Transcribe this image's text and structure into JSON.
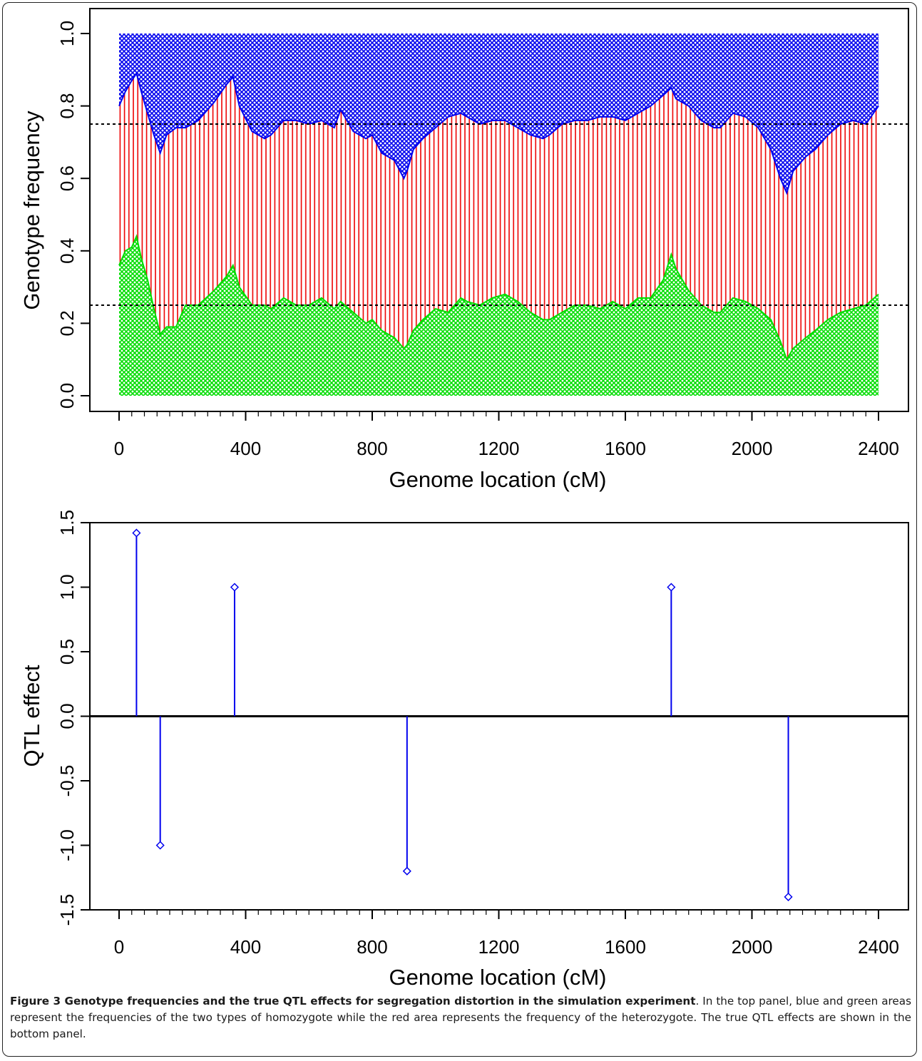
{
  "colors": {
    "blue": "#0000ee",
    "red": "#ee0000",
    "green": "#00dd00",
    "stem": "#0000ee",
    "axis": "#000000"
  },
  "chart_data": [
    {
      "type": "area",
      "name": "genotype-frequency",
      "xlabel": "Genome location (cM)",
      "ylabel": "Genotype frequency",
      "xlim": [
        0,
        2400
      ],
      "ylim": [
        0,
        1
      ],
      "xticks": [
        0,
        400,
        800,
        1200,
        1600,
        2000,
        2400
      ],
      "yticks": [
        "0.0",
        "0.2",
        "0.4",
        "0.6",
        "0.8",
        "1.0"
      ],
      "hlines": [
        0.25,
        0.75
      ],
      "x": [
        0,
        20,
        40,
        55,
        70,
        90,
        110,
        130,
        150,
        180,
        210,
        250,
        300,
        340,
        360,
        380,
        420,
        460,
        480,
        520,
        560,
        600,
        640,
        680,
        700,
        740,
        780,
        800,
        830,
        870,
        900,
        910,
        930,
        960,
        1000,
        1040,
        1080,
        1100,
        1140,
        1180,
        1220,
        1260,
        1300,
        1340,
        1360,
        1400,
        1440,
        1480,
        1520,
        1560,
        1600,
        1640,
        1680,
        1720,
        1745,
        1760,
        1800,
        1840,
        1880,
        1900,
        1940,
        1980,
        2020,
        2060,
        2090,
        2110,
        2130,
        2170,
        2200,
        2240,
        2280,
        2320,
        2360,
        2400
      ],
      "lower": [
        0.36,
        0.4,
        0.41,
        0.44,
        0.38,
        0.32,
        0.24,
        0.17,
        0.19,
        0.19,
        0.25,
        0.25,
        0.29,
        0.33,
        0.36,
        0.3,
        0.25,
        0.25,
        0.24,
        0.27,
        0.25,
        0.25,
        0.27,
        0.24,
        0.26,
        0.23,
        0.2,
        0.21,
        0.18,
        0.16,
        0.13,
        0.14,
        0.18,
        0.21,
        0.24,
        0.23,
        0.27,
        0.26,
        0.25,
        0.27,
        0.28,
        0.26,
        0.23,
        0.21,
        0.21,
        0.23,
        0.25,
        0.25,
        0.24,
        0.26,
        0.24,
        0.27,
        0.27,
        0.32,
        0.39,
        0.35,
        0.29,
        0.25,
        0.23,
        0.23,
        0.27,
        0.26,
        0.24,
        0.21,
        0.15,
        0.1,
        0.13,
        0.16,
        0.18,
        0.21,
        0.23,
        0.24,
        0.25,
        0.28
      ],
      "upper": [
        0.8,
        0.84,
        0.87,
        0.89,
        0.84,
        0.78,
        0.72,
        0.67,
        0.72,
        0.74,
        0.74,
        0.76,
        0.81,
        0.86,
        0.88,
        0.8,
        0.73,
        0.71,
        0.72,
        0.76,
        0.76,
        0.75,
        0.76,
        0.74,
        0.79,
        0.73,
        0.71,
        0.72,
        0.67,
        0.65,
        0.6,
        0.62,
        0.68,
        0.71,
        0.74,
        0.77,
        0.78,
        0.77,
        0.75,
        0.76,
        0.76,
        0.74,
        0.72,
        0.71,
        0.72,
        0.75,
        0.76,
        0.76,
        0.77,
        0.77,
        0.76,
        0.78,
        0.8,
        0.83,
        0.85,
        0.82,
        0.8,
        0.76,
        0.74,
        0.74,
        0.78,
        0.77,
        0.74,
        0.68,
        0.6,
        0.56,
        0.62,
        0.66,
        0.68,
        0.72,
        0.75,
        0.76,
        0.75,
        0.8
      ]
    },
    {
      "type": "stem",
      "name": "qtl-effect",
      "xlabel": "Genome location (cM)",
      "ylabel": "QTL effect",
      "xlim": [
        0,
        2400
      ],
      "ylim": [
        -1.5,
        1.5
      ],
      "xticks": [
        0,
        400,
        800,
        1200,
        1600,
        2000,
        2400
      ],
      "yticks": [
        "-1.5",
        "-1.0",
        "-0.5",
        "0.0",
        "0.5",
        "1.0",
        "1.5"
      ],
      "x": [
        55,
        130,
        365,
        910,
        1745,
        2115
      ],
      "values": [
        1.42,
        -1.0,
        1.0,
        -1.2,
        1.0,
        -1.4
      ]
    }
  ],
  "caption": {
    "bold": "Figure 3 Genotype frequencies and the true QTL effects for segregation distortion in the simulation experiment",
    "rest": ". In the top panel, blue and green areas represent the frequencies of the two types of homozygote while the red area represents the frequency of the heterozygote. The true QTL effects are shown in the bottom panel."
  }
}
